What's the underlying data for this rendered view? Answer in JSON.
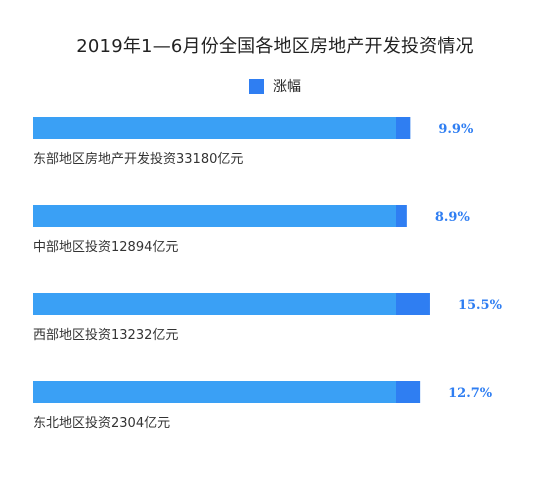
{
  "chart_data": {
    "type": "bar",
    "orientation": "horizontal",
    "title": "2019年1—6月份全国各地区房地产开发投资情况",
    "legend": {
      "label": "涨幅",
      "placement": "top-center"
    },
    "categories": [
      "东部地区房地产开发投资33180亿元",
      "中部地区投资12894亿元",
      "西部地区投资13232亿元",
      "东北地区投资2304亿元"
    ],
    "series": [
      {
        "name": "涨幅",
        "values": [
          9.9,
          8.9,
          15.5,
          12.7
        ],
        "value_labels": [
          "9.9%",
          "8.9%",
          "15.5%",
          "12.7%"
        ]
      }
    ],
    "xlim": [
      0,
      16
    ],
    "grid": false,
    "colors": {
      "bar_light": "#3aa0f5",
      "bar_dark": "#2f7ef2",
      "value_text": "#2f7ef2",
      "category_text": "#333333",
      "title_text": "#222222"
    }
  }
}
